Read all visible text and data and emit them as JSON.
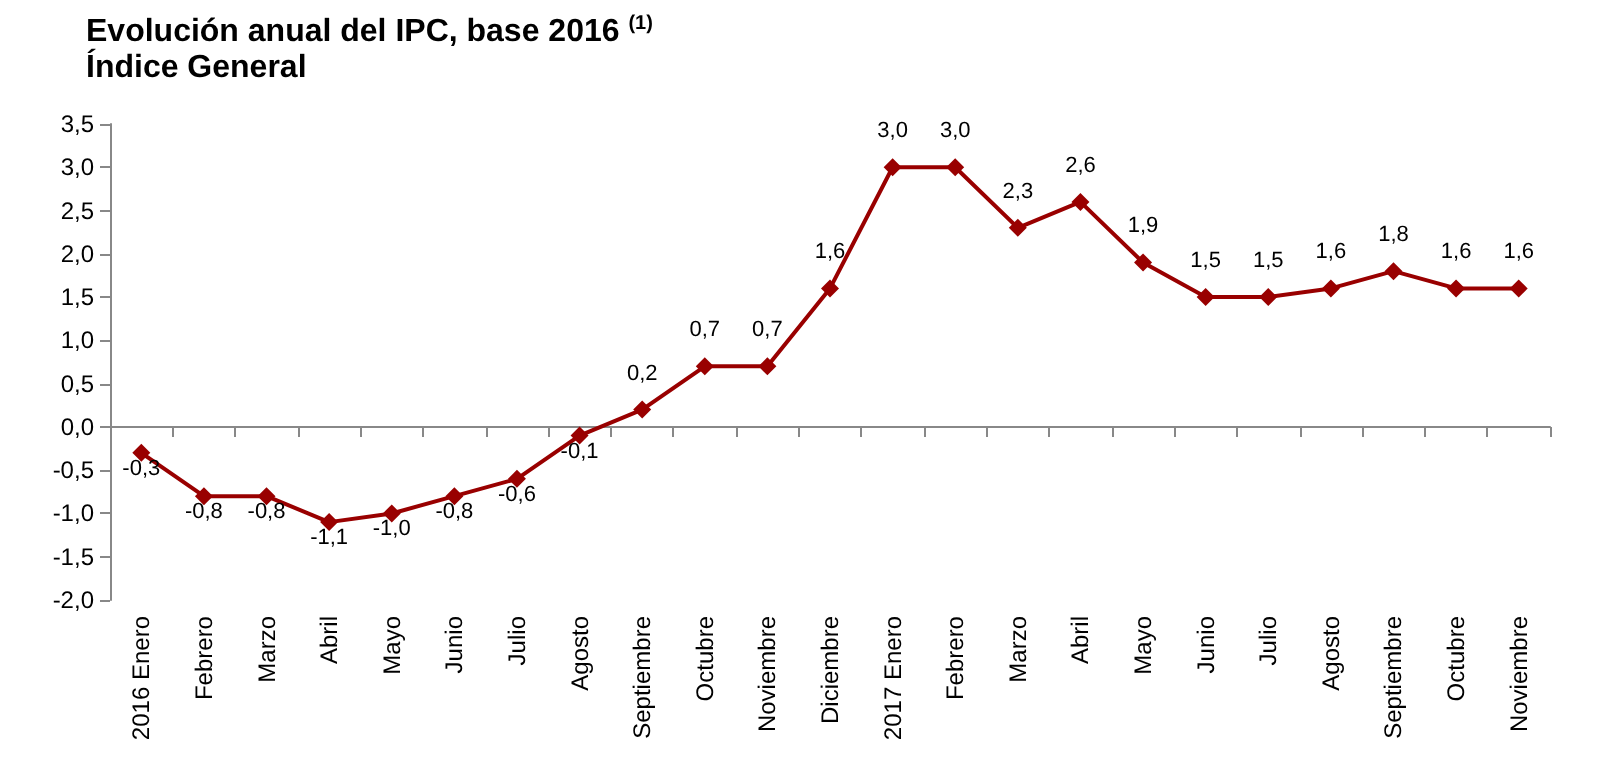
{
  "chart_data": {
    "type": "line",
    "title": "Evolución anual del IPC, base 2016 $^{(1)}$",
    "subtitle": "Índice General",
    "categories": [
      "2016 Enero",
      "Febrero",
      "Marzo",
      "Abril",
      "Mayo",
      "Junio",
      "Julio",
      "Agosto",
      "Septiembre",
      "Octubre",
      "Noviembre",
      "Diciembre",
      "2017 Enero",
      "Febrero",
      "Marzo",
      "Abril",
      "Mayo",
      "Junio",
      "Julio",
      "Agosto",
      "Septiembre",
      "Octubre",
      "Noviembre"
    ],
    "series": [
      {
        "color": "#990000",
        "values": [
          -0.3,
          -0.8,
          -0.8,
          -1.1,
          -1.0,
          -0.8,
          -0.6,
          -0.1,
          0.2,
          0.7,
          0.7,
          1.6,
          3.0,
          3.0,
          2.3,
          2.6,
          1.9,
          1.5,
          1.5,
          1.6,
          1.8,
          1.6,
          1.6
        ],
        "value_labels": [
          "-0,3",
          "-0,8",
          "-0,8",
          "-1,1",
          "-1,0",
          "-0,8",
          "-0,6",
          "-0,1",
          "0,2",
          "0,7",
          "0,7",
          "1,6",
          "3,0",
          "3,0",
          "2,3",
          "2,6",
          "1,9",
          "1,5",
          "1,5",
          "1,6",
          "1,8",
          "1,6",
          "1,6"
        ]
      }
    ],
    "ylim": [
      -2.0,
      3.5
    ],
    "yticks": [
      {
        "value": -2.0,
        "label": "-2,0"
      },
      {
        "value": -1.5,
        "label": "-1,5"
      },
      {
        "value": -1.0,
        "label": "-1,0"
      },
      {
        "value": -0.5,
        "label": "-0,5"
      },
      {
        "value": 0.0,
        "label": "0,0"
      },
      {
        "value": 0.5,
        "label": "0,5"
      },
      {
        "value": 1.0,
        "label": "1,0"
      },
      {
        "value": 1.5,
        "label": "1,5"
      },
      {
        "value": 2.0,
        "label": "2,0"
      },
      {
        "value": 2.5,
        "label": "2,5"
      },
      {
        "value": 3.0,
        "label": "3,0"
      },
      {
        "value": 3.5,
        "label": "3,5"
      }
    ],
    "marker": "diamond",
    "line_style": "solid"
  }
}
